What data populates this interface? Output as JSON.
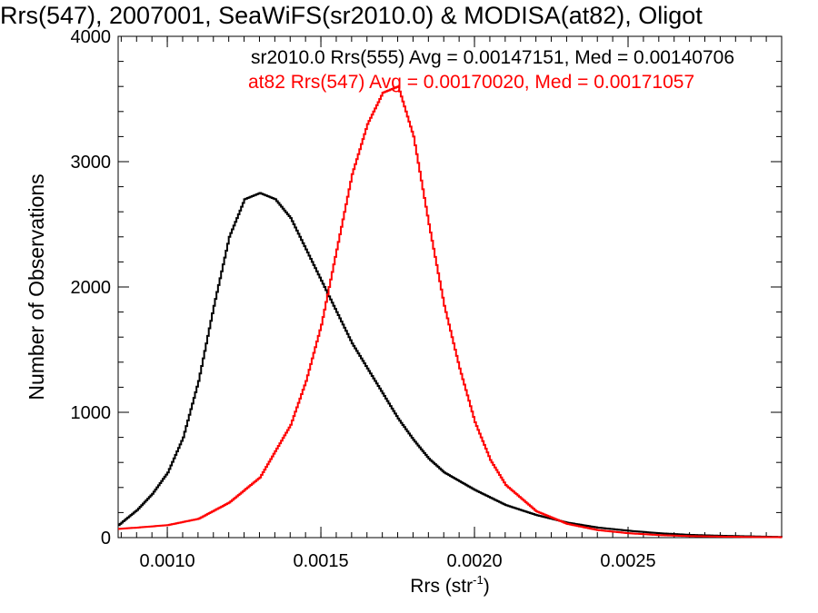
{
  "chart_data": {
    "type": "line",
    "title": "Rrs(547), 2007001, SeaWiFS(sr2010.0) & MODISA(at82), Oligot",
    "xlabel_base": "Rrs (str",
    "xlabel_exp": "-1",
    "xlabel_close": ")",
    "ylabel": "Number of Observations",
    "xlim": [
      0.00084,
      0.003
    ],
    "ylim": [
      0,
      4000
    ],
    "x_ticks": [
      "0.0010",
      "0.0015",
      "0.0020",
      "0.0025"
    ],
    "x_tick_values": [
      0.001,
      0.0015,
      0.002,
      0.0025
    ],
    "y_ticks": [
      "0",
      "1000",
      "2000",
      "3000",
      "4000"
    ],
    "y_tick_values": [
      0,
      1000,
      2000,
      3000,
      4000
    ],
    "grid": false,
    "series": [
      {
        "name": "sr2010.0 Rrs(555) Avg = 0.00147151, Med = 0.00140706",
        "color": "#000000",
        "x": [
          0.00084,
          0.0009,
          0.00095,
          0.001,
          0.00105,
          0.0011,
          0.00115,
          0.0012,
          0.00125,
          0.0013,
          0.00135,
          0.0014,
          0.00145,
          0.0015,
          0.00155,
          0.0016,
          0.00165,
          0.0017,
          0.00175,
          0.0018,
          0.00185,
          0.0019,
          0.002,
          0.0021,
          0.0022,
          0.0023,
          0.0024,
          0.0025,
          0.0026,
          0.0027,
          0.0028,
          0.0029,
          0.003
        ],
        "y": [
          100,
          220,
          350,
          520,
          800,
          1250,
          1850,
          2400,
          2700,
          2750,
          2700,
          2550,
          2300,
          2050,
          1800,
          1550,
          1350,
          1150,
          950,
          780,
          630,
          520,
          380,
          260,
          180,
          120,
          80,
          55,
          35,
          22,
          15,
          10,
          5
        ]
      },
      {
        "name": "at82 Rrs(547) Avg = 0.00170020, Med = 0.00171057",
        "color": "#ff0000",
        "x": [
          0.00084,
          0.0009,
          0.001,
          0.0011,
          0.0012,
          0.0013,
          0.0014,
          0.00145,
          0.0015,
          0.00155,
          0.0016,
          0.00165,
          0.0017,
          0.00175,
          0.0018,
          0.00185,
          0.0019,
          0.00195,
          0.002,
          0.00205,
          0.0021,
          0.0022,
          0.0023,
          0.0024,
          0.0025,
          0.0026,
          0.0027,
          0.0028,
          0.0029,
          0.003
        ],
        "y": [
          70,
          80,
          100,
          150,
          280,
          480,
          900,
          1250,
          1700,
          2300,
          2900,
          3300,
          3550,
          3600,
          3200,
          2500,
          1850,
          1350,
          920,
          620,
          420,
          210,
          110,
          60,
          35,
          20,
          12,
          8,
          5,
          3
        ]
      }
    ]
  }
}
